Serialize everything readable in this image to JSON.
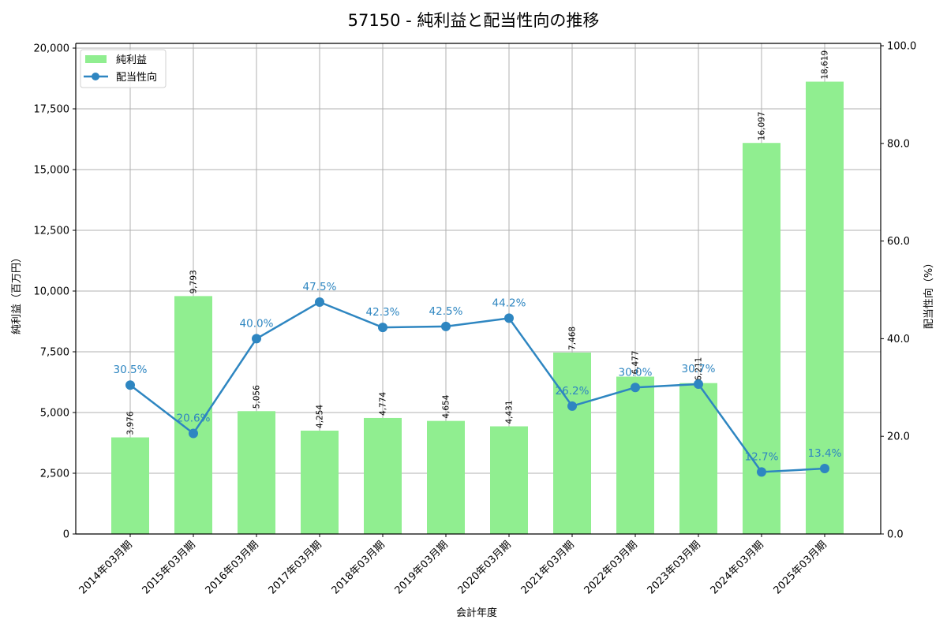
{
  "title": "57150 - 純利益と配当性向の推移",
  "colors": {
    "bar": "#90ee90",
    "line": "#2e86c1",
    "grid": "#b0b0b0",
    "axis": "#000000"
  },
  "legend": {
    "items": [
      {
        "label": "純利益",
        "type": "bar"
      },
      {
        "label": "配当性向",
        "type": "line"
      }
    ]
  },
  "axes": {
    "x_label": "会計年度",
    "y_left_label": "純利益（百万円）",
    "y_right_label": "配当性向（%）",
    "y_left_ticks": [
      "0",
      "2,500",
      "5,000",
      "7,500",
      "10,000",
      "12,500",
      "15,000",
      "17,500",
      "20,000"
    ],
    "y_right_ticks": [
      "0.0",
      "20.0",
      "40.0",
      "60.0",
      "80.0",
      "100.0"
    ]
  },
  "chart_data": {
    "type": "bar+line",
    "title": "57150 - 純利益と配当性向の推移",
    "xlabel": "会計年度",
    "ylabel": "純利益（百万円）",
    "y2label": "配当性向（%）",
    "ylim": [
      0,
      20000
    ],
    "y2lim": [
      0,
      100
    ],
    "grid": true,
    "legend_position": "upper left",
    "categories": [
      "2014年03月期",
      "2015年03月期",
      "2016年03月期",
      "2017年03月期",
      "2018年03月期",
      "2019年03月期",
      "2020年03月期",
      "2021年03月期",
      "2022年03月期",
      "2023年03月期",
      "2024年03月期",
      "2025年03月期"
    ],
    "series": [
      {
        "name": "純利益",
        "type": "bar",
        "axis": "left",
        "values": [
          3976,
          9793,
          5056,
          4254,
          4774,
          4654,
          4431,
          7468,
          6477,
          6211,
          16097,
          18619
        ],
        "labels": [
          "3,976",
          "9,793",
          "5,056",
          "4,254",
          "4,774",
          "4,654",
          "4,431",
          "7,468",
          "6,477",
          "6,211",
          "16,097",
          "18,619"
        ]
      },
      {
        "name": "配当性向",
        "type": "line",
        "axis": "right",
        "values": [
          30.5,
          20.6,
          40.0,
          47.5,
          42.3,
          42.5,
          44.2,
          26.2,
          30.0,
          30.7,
          12.7,
          13.4
        ],
        "labels": [
          "30.5%",
          "20.6%",
          "40.0%",
          "47.5%",
          "42.3%",
          "42.5%",
          "44.2%",
          "26.2%",
          "30.0%",
          "30.7%",
          "12.7%",
          "13.4%"
        ]
      }
    ]
  }
}
